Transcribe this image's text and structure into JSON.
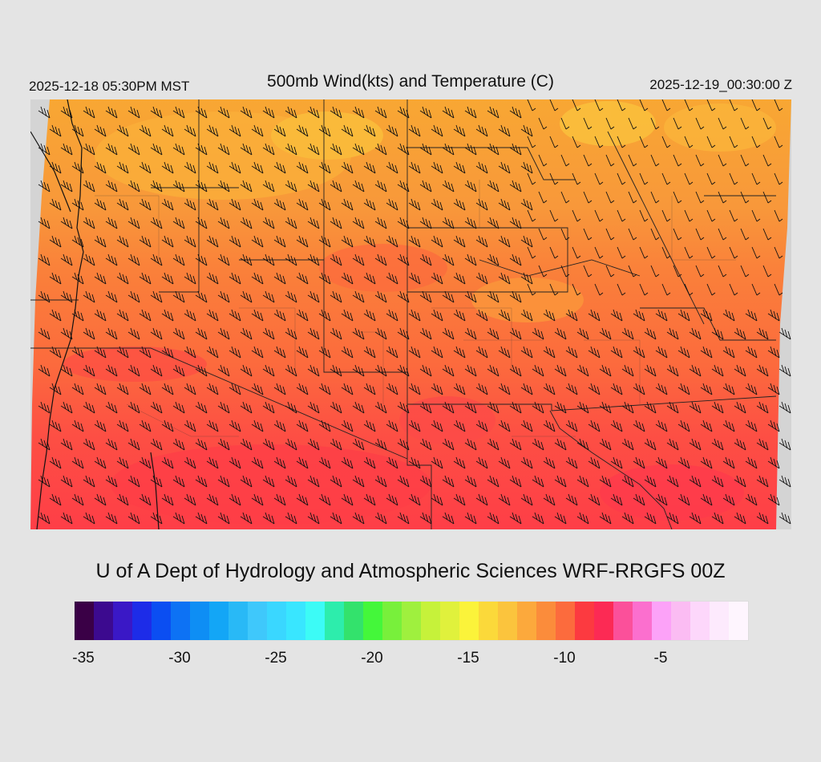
{
  "header": {
    "title": "500mb Wind(kts) and Temperature (C)",
    "valid_local": "2025-12-18 05:30PM MST",
    "valid_utc": "2025-12-19_00:30:00 Z"
  },
  "footer": {
    "credit": "U of A Dept of Hydrology and Atmospheric Sciences WRF-RRGFS 00Z"
  },
  "map": {
    "field": "500mb temperature (C) with wind barbs (kts)",
    "temperature_bands": [
      {
        "range": "north",
        "approx_temp_c": -13,
        "color": "#f6a233"
      },
      {
        "range": "central",
        "approx_temp_c": -11.5,
        "color": "#f98236"
      },
      {
        "range": "south",
        "approx_temp_c": -9.5,
        "color": "#fe4a45"
      }
    ],
    "wind_direction_dominant": "west-northwest",
    "background_color": "#d4d4d4"
  },
  "colorbar": {
    "colors": [
      "#3a0046",
      "#3c0a8f",
      "#3a18c6",
      "#1d2ce8",
      "#0b4ef2",
      "#0d72f4",
      "#0e8ef4",
      "#13a6f6",
      "#29b9f6",
      "#3fc8fb",
      "#3ad7ff",
      "#39e6ff",
      "#3cfbf6",
      "#2dedac",
      "#33e26c",
      "#44f73a",
      "#78f03b",
      "#9ff03e",
      "#c6f23a",
      "#e0f13c",
      "#fbf33a",
      "#fbd93a",
      "#fbc43d",
      "#fca93c",
      "#fb8c3b",
      "#fc6b3d",
      "#fc3a40",
      "#fc2a54",
      "#fb509a",
      "#fb6fce",
      "#fca2f8",
      "#fbbcf3",
      "#fdd7fb",
      "#fdeafd",
      "#fef5fe"
    ],
    "tick_labels": [
      {
        "label": "-35",
        "value": -35
      },
      {
        "label": "-30",
        "value": -30
      },
      {
        "label": "-25",
        "value": -25
      },
      {
        "label": "-20",
        "value": -20
      },
      {
        "label": "-15",
        "value": -15
      },
      {
        "label": "-10",
        "value": -10
      },
      {
        "label": "-5",
        "value": -5
      }
    ],
    "min": -35.5,
    "max": -0.5
  }
}
